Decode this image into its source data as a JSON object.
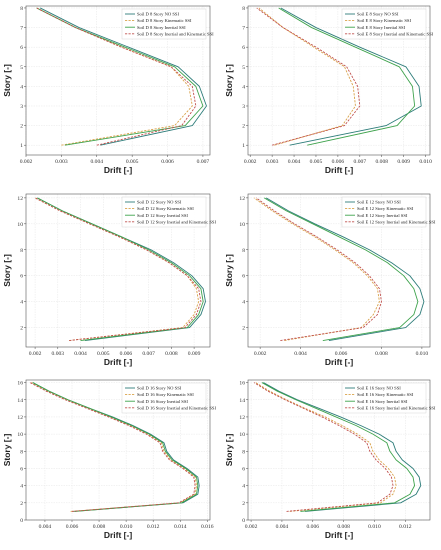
{
  "colors": {
    "no_ssi": "#2e7d7a",
    "kinematic": "#d9a24a",
    "inertial": "#3fa34d",
    "inertial_kinematic": "#c0504d"
  },
  "chart_data": [
    {
      "type": "line",
      "xlabel": "Drift [-]",
      "ylabel": "Story [-]",
      "xlim": [
        0.002,
        0.0072
      ],
      "ylim": [
        0.5,
        8.1
      ],
      "xticks": [
        "0.002",
        "0.003",
        "0.004",
        "0.005",
        "0.006",
        "0.007"
      ],
      "yticks": [
        "1",
        "2",
        "3",
        "4",
        "5",
        "6",
        "7",
        "8"
      ],
      "grid": true,
      "legend_position": "top-right",
      "y": [
        1,
        2,
        3,
        4,
        5,
        6,
        7,
        8
      ],
      "series": [
        {
          "name": "Soil D 8 Story NO SSI",
          "style": "solid",
          "color_key": "no_ssi",
          "x": [
            0.0041,
            0.0067,
            0.0071,
            0.0069,
            0.0063,
            0.0049,
            0.0035,
            0.0024
          ]
        },
        {
          "name": "Soil D 8 Story Kinematic SSI",
          "style": "dashed",
          "color_key": "kinematic",
          "x": [
            0.003,
            0.0062,
            0.0067,
            0.0066,
            0.0061,
            0.0047,
            0.0034,
            0.0023
          ]
        },
        {
          "name": "Soil D 8 Story Inertial SSI",
          "style": "solid",
          "color_key": "inertial",
          "x": [
            0.0031,
            0.0065,
            0.007,
            0.0068,
            0.0062,
            0.0048,
            0.0034,
            0.0023
          ]
        },
        {
          "name": "Soil D 8 Story Inertial and Kinematic SSI",
          "style": "dashed",
          "color_key": "inertial_kinematic",
          "x": [
            0.004,
            0.0064,
            0.0068,
            0.0067,
            0.0061,
            0.0047,
            0.0034,
            0.0023
          ]
        }
      ]
    },
    {
      "type": "line",
      "xlabel": "Drift [-]",
      "ylabel": "Story [-]",
      "xlim": [
        0.0019,
        0.0102
      ],
      "ylim": [
        0.5,
        8.1
      ],
      "xticks": [
        "0.002",
        "0.003",
        "0.004",
        "0.005",
        "0.006",
        "0.007",
        "0.008",
        "0.009",
        "0.010"
      ],
      "yticks": [
        "1",
        "2",
        "3",
        "4",
        "5",
        "6",
        "7",
        "8"
      ],
      "grid": true,
      "legend_position": "top-right",
      "y": [
        1,
        2,
        3,
        4,
        5,
        6,
        7,
        8
      ],
      "series": [
        {
          "name": "Soil E 8 Story NO SSI",
          "style": "solid",
          "color_key": "no_ssi",
          "x": [
            0.0038,
            0.0082,
            0.0098,
            0.0097,
            0.0091,
            0.007,
            0.005,
            0.0034
          ]
        },
        {
          "name": "Soil E 8 Story Kinematic SSI",
          "style": "dashed",
          "color_key": "kinematic",
          "x": [
            0.0031,
            0.0062,
            0.0068,
            0.0067,
            0.0063,
            0.0049,
            0.0035,
            0.0024
          ]
        },
        {
          "name": "Soil E 8 Story Inertial SSI",
          "style": "solid",
          "color_key": "inertial",
          "x": [
            0.0046,
            0.0087,
            0.0095,
            0.0094,
            0.0088,
            0.0068,
            0.0048,
            0.0033
          ]
        },
        {
          "name": "Soil E 8 Story Inertial and Kinematic SSI",
          "style": "dashed",
          "color_key": "inertial_kinematic",
          "x": [
            0.003,
            0.0063,
            0.007,
            0.0069,
            0.0064,
            0.005,
            0.0035,
            0.0023
          ]
        }
      ]
    },
    {
      "type": "line",
      "xlabel": "Drift [-]",
      "ylabel": "Story [-]",
      "xlim": [
        0.0016,
        0.0097
      ],
      "ylim": [
        0.5,
        12.3
      ],
      "xticks": [
        "0.002",
        "0.003",
        "0.004",
        "0.005",
        "0.006",
        "0.007",
        "0.008",
        "0.009"
      ],
      "yticks": [
        "2",
        "4",
        "6",
        "8",
        "10",
        "12"
      ],
      "grid": true,
      "legend_position": "top-right",
      "y": [
        1,
        2,
        3,
        4,
        5,
        6,
        7,
        8,
        9,
        10,
        11,
        12
      ],
      "series": [
        {
          "name": "Soil D 12 Story NO SSI",
          "style": "solid",
          "color_key": "no_ssi",
          "x": [
            0.0042,
            0.0088,
            0.0093,
            0.0095,
            0.0094,
            0.0089,
            0.0081,
            0.0071,
            0.0058,
            0.0045,
            0.0032,
            0.0021
          ]
        },
        {
          "name": "Soil D 12 Story Kinematic SSI",
          "style": "dashed",
          "color_key": "kinematic",
          "x": [
            0.0035,
            0.0085,
            0.009,
            0.0092,
            0.0091,
            0.0087,
            0.0079,
            0.0069,
            0.0057,
            0.0044,
            0.0031,
            0.002
          ]
        },
        {
          "name": "Soil D 12 Story Inertial SSI",
          "style": "solid",
          "color_key": "inertial",
          "x": [
            0.004,
            0.0087,
            0.0092,
            0.0094,
            0.0093,
            0.0088,
            0.008,
            0.007,
            0.0058,
            0.0045,
            0.0032,
            0.0021
          ]
        },
        {
          "name": "Soil D 12 Story Inertial and Kinematic SSI",
          "style": "dashed",
          "color_key": "inertial_kinematic",
          "x": [
            0.0035,
            0.0086,
            0.0091,
            0.0093,
            0.0092,
            0.0087,
            0.0079,
            0.0069,
            0.0057,
            0.0044,
            0.0031,
            0.002
          ]
        }
      ]
    },
    {
      "type": "line",
      "xlabel": "Drift [-]",
      "ylabel": "Story [-]",
      "xlim": [
        0.0014,
        0.0104
      ],
      "ylim": [
        0.5,
        12.3
      ],
      "xticks": [
        "0.002",
        "0.004",
        "0.006",
        "0.008",
        "0.010"
      ],
      "yticks": [
        "2",
        "4",
        "6",
        "8",
        "10",
        "12"
      ],
      "grid": true,
      "legend_position": "top-right",
      "y": [
        1,
        2,
        3,
        4,
        5,
        6,
        7,
        8,
        9,
        10,
        11,
        12
      ],
      "series": [
        {
          "name": "Soil E 12 Story NO SSI",
          "style": "solid",
          "color_key": "no_ssi",
          "x": [
            0.0054,
            0.0092,
            0.0099,
            0.0101,
            0.0099,
            0.0094,
            0.0085,
            0.0074,
            0.0061,
            0.0047,
            0.0034,
            0.0023
          ]
        },
        {
          "name": "Soil E 12 Story Kinematic SSI",
          "style": "dashed",
          "color_key": "kinematic",
          "x": [
            0.0032,
            0.007,
            0.0076,
            0.0079,
            0.0078,
            0.0073,
            0.0066,
            0.0057,
            0.0047,
            0.0036,
            0.0026,
            0.0017
          ]
        },
        {
          "name": "Soil E 12 Story Inertial SSI",
          "style": "solid",
          "color_key": "inertial",
          "x": [
            0.0051,
            0.0089,
            0.0096,
            0.0098,
            0.0096,
            0.0091,
            0.0083,
            0.0072,
            0.0059,
            0.0046,
            0.0033,
            0.0022
          ]
        },
        {
          "name": "Soil E 12 Story Inertial and Kinematic SSI",
          "style": "dashed",
          "color_key": "inertial_kinematic",
          "x": [
            0.003,
            0.0071,
            0.0078,
            0.008,
            0.0079,
            0.0074,
            0.0067,
            0.0058,
            0.0048,
            0.0037,
            0.0027,
            0.0018
          ]
        }
      ]
    },
    {
      "type": "line",
      "xlabel": "Drift [-]",
      "ylabel": "Story [-]",
      "xlim": [
        0.0026,
        0.0162
      ],
      "ylim": [
        0,
        16.3
      ],
      "xticks": [
        "0.004",
        "0.006",
        "0.008",
        "0.010",
        "0.012",
        "0.014",
        "0.016"
      ],
      "yticks": [
        "0",
        "2",
        "4",
        "6",
        "8",
        "10",
        "12",
        "14",
        "16"
      ],
      "grid": true,
      "legend_position": "top-right",
      "y": [
        1,
        2,
        3,
        4,
        5,
        6,
        7,
        8,
        9,
        10,
        11,
        12,
        13,
        14,
        15,
        16
      ],
      "series": [
        {
          "name": "Soil D 16 Story NO SSI",
          "style": "solid",
          "color_key": "no_ssi",
          "x": [
            0.0061,
            0.0142,
            0.0153,
            0.0154,
            0.0153,
            0.0145,
            0.0135,
            0.013,
            0.0128,
            0.0118,
            0.0105,
            0.009,
            0.0073,
            0.0057,
            0.0043,
            0.0031
          ]
        },
        {
          "name": "Soil D 16 Story Kinematic SSI",
          "style": "dashed",
          "color_key": "kinematic",
          "x": [
            0.0059,
            0.014,
            0.0151,
            0.0152,
            0.0151,
            0.0143,
            0.0133,
            0.0128,
            0.0126,
            0.0116,
            0.0103,
            0.0088,
            0.0072,
            0.0056,
            0.0042,
            0.003
          ]
        },
        {
          "name": "Soil D 16 Story Inertial SSI",
          "style": "solid",
          "color_key": "inertial",
          "x": [
            0.0062,
            0.0141,
            0.0152,
            0.0153,
            0.0152,
            0.0144,
            0.0134,
            0.0129,
            0.0127,
            0.0117,
            0.0104,
            0.0089,
            0.0073,
            0.0057,
            0.0043,
            0.0031
          ]
        },
        {
          "name": "Soil D 16 Story Inertial and Kinematic SSI",
          "style": "dashed",
          "color_key": "inertial_kinematic",
          "x": [
            0.006,
            0.0139,
            0.015,
            0.0151,
            0.015,
            0.0142,
            0.0132,
            0.0127,
            0.0125,
            0.0115,
            0.0102,
            0.0087,
            0.0071,
            0.0055,
            0.0041,
            0.0029
          ]
        }
      ]
    },
    {
      "type": "line",
      "xlabel": "Drift [-]",
      "ylabel": "Story [-]",
      "xlim": [
        0.0018,
        0.0136
      ],
      "ylim": [
        0,
        16.3
      ],
      "xticks": [
        "0.002",
        "0.004",
        "0.006",
        "0.008",
        "0.010",
        "0.012"
      ],
      "yticks": [
        "0",
        "2",
        "4",
        "6",
        "8",
        "10",
        "12",
        "14",
        "16"
      ],
      "grid": true,
      "legend_position": "top-right",
      "y": [
        1,
        2,
        3,
        4,
        5,
        6,
        7,
        8,
        9,
        10,
        11,
        12,
        13,
        14,
        15,
        16
      ],
      "series": [
        {
          "name": "Soil E 16 Story NO SSI",
          "style": "solid",
          "color_key": "no_ssi",
          "x": [
            0.0055,
            0.0117,
            0.0127,
            0.013,
            0.0129,
            0.0125,
            0.0118,
            0.0114,
            0.0112,
            0.0103,
            0.0091,
            0.0078,
            0.0064,
            0.005,
            0.0038,
            0.0028
          ]
        },
        {
          "name": "Soil E 16 Story Kinematic SSI",
          "style": "dashed",
          "color_key": "kinematic",
          "x": [
            0.0045,
            0.0104,
            0.0112,
            0.0114,
            0.0113,
            0.0109,
            0.0103,
            0.0099,
            0.0097,
            0.0089,
            0.0079,
            0.0068,
            0.0055,
            0.0043,
            0.0032,
            0.0023
          ]
        },
        {
          "name": "Soil E 16 Story Inertial SSI",
          "style": "solid",
          "color_key": "inertial",
          "x": [
            0.0052,
            0.0113,
            0.0123,
            0.0126,
            0.0125,
            0.0121,
            0.0114,
            0.011,
            0.0108,
            0.0099,
            0.0088,
            0.0075,
            0.0062,
            0.0049,
            0.0037,
            0.0027
          ]
        },
        {
          "name": "Soil E 16 Story Inertial and Kinematic SSI",
          "style": "dashed",
          "color_key": "inertial_kinematic",
          "x": [
            0.0043,
            0.0102,
            0.011,
            0.0112,
            0.0111,
            0.0107,
            0.0101,
            0.0097,
            0.0095,
            0.0087,
            0.0077,
            0.0066,
            0.0054,
            0.0042,
            0.0031,
            0.0022
          ]
        }
      ]
    }
  ]
}
